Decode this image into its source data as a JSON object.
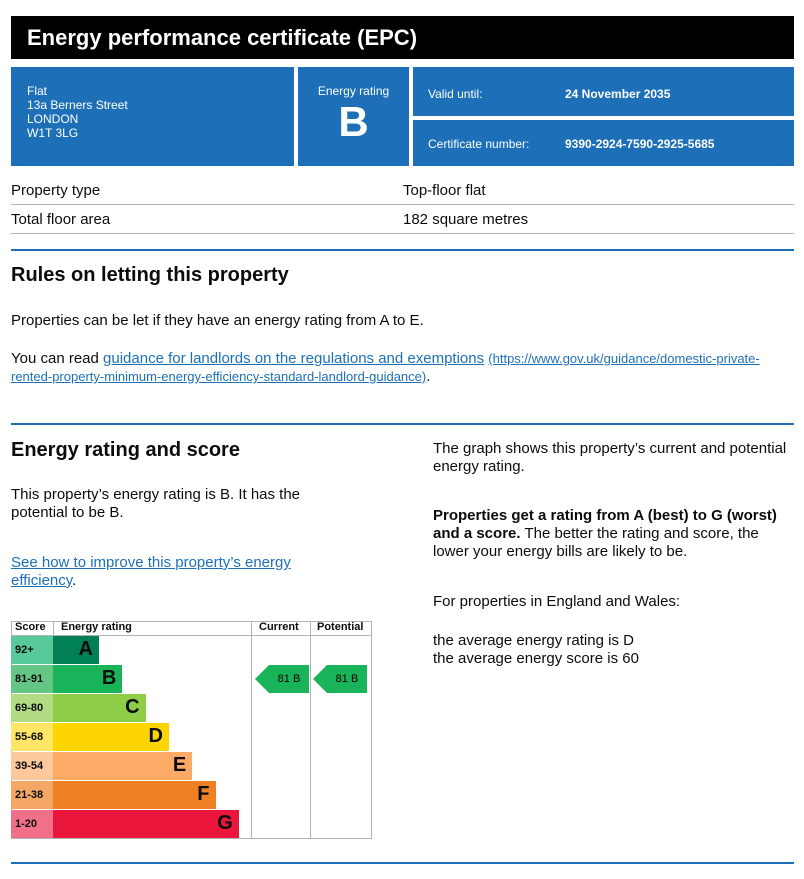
{
  "header": {
    "title": "Energy performance certificate (EPC)"
  },
  "address": {
    "lines": [
      "Flat",
      "13a Berners Street",
      "LONDON",
      "W1T 3LG"
    ]
  },
  "energy_rating": {
    "label": "Energy rating",
    "value": "B"
  },
  "validity": {
    "label": "Valid until:",
    "value": "24 November 2035"
  },
  "certificate": {
    "label": "Certificate number:",
    "value": "9390-2924-7590-2925-5685"
  },
  "property": [
    {
      "key": "Property type",
      "value": "Top-floor flat"
    },
    {
      "key": "Total floor area",
      "value": "182 square metres"
    }
  ],
  "letting": {
    "heading": "Rules on letting this property",
    "para1": "Properties can be let if they have an energy rating from A to E.",
    "para2_prefix": "You can read ",
    "link_text": "guidance for landlords on the regulations and exemptions",
    "link_url_text": "(https://www.gov.uk/guidance/domestic-private-rented-property-minimum-energy-efficiency-standard-landlord-guidance)",
    "para2_suffix": "."
  },
  "score_section": {
    "heading": "Energy rating and score",
    "para1": "This property’s energy rating is B. It has the potential to be B.",
    "improve_link": "See how to improve this property’s energy efficiency",
    "improve_suffix": ".",
    "right_para1": "The graph shows this property’s current and potential energy rating.",
    "right_bold": "Properties get a rating from A (best) to G (worst) and a score.",
    "right_rest": " The better the rating and score, the lower your energy bills are likely to be.",
    "right_para3": "For properties in England and Wales:",
    "avg_rating": "the average energy rating is D",
    "avg_score": "the average energy score is 60"
  },
  "graph": {
    "headers": {
      "score": "Score",
      "rating": "Energy rating",
      "current": "Current",
      "potential": "Potential"
    },
    "bands": [
      {
        "score": "92+",
        "letter": "A",
        "color": "#008054",
        "light": "#57c99a"
      },
      {
        "score": "81-91",
        "letter": "B",
        "color": "#19b459",
        "light": "#63c684"
      },
      {
        "score": "69-80",
        "letter": "C",
        "color": "#8dce46",
        "light": "#b2dc84"
      },
      {
        "score": "55-68",
        "letter": "D",
        "color": "#ffd500",
        "light": "#ffe666"
      },
      {
        "score": "39-54",
        "letter": "E",
        "color": "#fcaa65",
        "light": "#fdc89b"
      },
      {
        "score": "21-38",
        "letter": "F",
        "color": "#ef8023",
        "light": "#f5a766"
      },
      {
        "score": "1-20",
        "letter": "G",
        "color": "#e9153b",
        "light": "#f07089"
      }
    ],
    "current": {
      "score": 81,
      "band": "B",
      "label": "81 B"
    },
    "potential": {
      "score": 81,
      "band": "B",
      "label": "81 B"
    }
  }
}
